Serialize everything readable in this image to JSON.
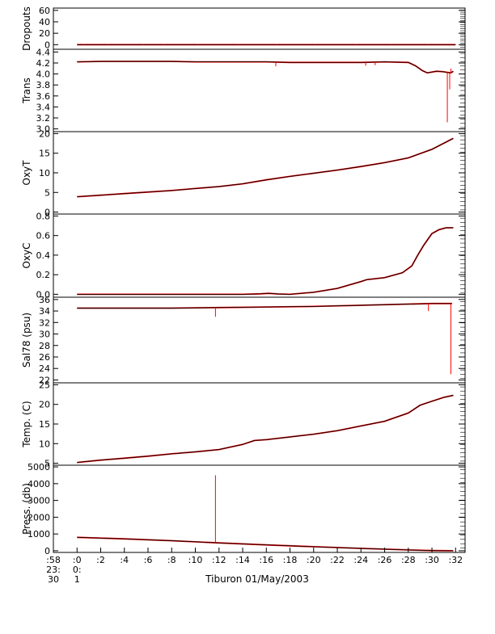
{
  "figure": {
    "caption": "Tiburon 01/May/2003",
    "x_ticks": [
      ":58",
      ":0",
      ":2",
      ":4",
      ":6",
      ":8",
      ":10",
      ":12",
      ":14",
      ":16",
      ":18",
      ":20",
      ":22",
      ":24",
      ":26",
      ":28",
      ":30",
      ":32"
    ],
    "x_sub1": [
      "23:",
      "0:"
    ],
    "x_sub2": [
      "30",
      "1"
    ]
  },
  "colors": {
    "trace": "#000000",
    "overlay": "#ff0000",
    "axis": "#000000"
  },
  "chart_data": [
    {
      "type": "line",
      "ylabel": "Dropouts",
      "ylim": [
        -8,
        64
      ],
      "yticks": [
        0,
        20,
        40,
        60
      ],
      "ytick_labels": [
        "0",
        "20",
        "40",
        "60"
      ],
      "x": [
        0,
        32
      ],
      "series": [
        {
          "values": [
            0,
            0
          ]
        }
      ],
      "spikes": [
        [
          0.6,
          1
        ],
        [
          2.6,
          1
        ],
        [
          5.6,
          1
        ],
        [
          7.4,
          1
        ],
        [
          10.2,
          1
        ],
        [
          13.6,
          1
        ],
        [
          16.9,
          1
        ],
        [
          20.1,
          1
        ],
        [
          23.6,
          1
        ],
        [
          26.6,
          1
        ],
        [
          29.6,
          1
        ]
      ]
    },
    {
      "type": "line",
      "ylabel": "Trans",
      "ylim": [
        2.95,
        4.45
      ],
      "yticks": [
        3.0,
        3.2,
        3.4,
        3.6,
        3.8,
        4.0,
        4.2,
        4.4
      ],
      "ytick_labels": [
        "3.0",
        "3.2",
        "3.4",
        "3.6",
        "3.8",
        "4.0",
        "4.2",
        "4.4"
      ],
      "x": [
        0,
        2,
        4,
        6,
        8,
        10,
        12,
        14,
        16,
        18,
        20,
        22,
        24,
        26,
        28,
        28.6,
        29.2,
        29.6,
        30.4,
        31.0,
        31.3,
        31.6,
        31.8
      ],
      "series": [
        {
          "values": [
            4.22,
            4.23,
            4.23,
            4.23,
            4.23,
            4.22,
            4.22,
            4.22,
            4.22,
            4.21,
            4.21,
            4.21,
            4.21,
            4.22,
            4.21,
            4.15,
            4.06,
            4.02,
            4.05,
            4.04,
            4.03,
            4.02,
            4.05
          ]
        }
      ],
      "spikes": [
        [
          16.8,
          4.14
        ],
        [
          24.4,
          4.15
        ],
        [
          25.2,
          4.16
        ],
        [
          31.3,
          3.12
        ],
        [
          31.5,
          3.72
        ],
        [
          31.6,
          4.1
        ]
      ]
    },
    {
      "type": "line",
      "ylabel": "OxyT",
      "ylim": [
        -0.5,
        20.5
      ],
      "yticks": [
        0,
        5,
        10,
        15,
        20
      ],
      "ytick_labels": [
        "0",
        "5",
        "10",
        "15",
        "20"
      ],
      "x": [
        0,
        2,
        4,
        6,
        8,
        10,
        12,
        14,
        16,
        18,
        20,
        22,
        24,
        26,
        28,
        30,
        31.8
      ],
      "series": [
        {
          "values": [
            3.9,
            4.3,
            4.7,
            5.1,
            5.5,
            6.0,
            6.5,
            7.2,
            8.2,
            9.1,
            9.9,
            10.7,
            11.6,
            12.6,
            13.8,
            16.0,
            18.8
          ]
        }
      ],
      "spikes": []
    },
    {
      "type": "line",
      "ylabel": "OxyC",
      "ylim": [
        -0.03,
        0.82
      ],
      "yticks": [
        0.0,
        0.2,
        0.4,
        0.6,
        0.8
      ],
      "ytick_labels": [
        "0.0",
        "0.2",
        "0.4",
        "0.6",
        "0.8"
      ],
      "x": [
        0,
        4,
        8,
        12,
        14,
        15.5,
        16.2,
        17,
        18,
        20,
        22,
        24,
        24.5,
        26,
        27.5,
        28.3,
        28.8,
        29.3,
        30,
        30.6,
        31.2,
        31.8
      ],
      "series": [
        {
          "values": [
            0.0,
            0.0,
            0.0,
            0.0,
            0.0,
            0.005,
            0.01,
            0.003,
            0.0,
            0.02,
            0.06,
            0.13,
            0.15,
            0.17,
            0.22,
            0.29,
            0.4,
            0.5,
            0.62,
            0.66,
            0.68,
            0.68
          ]
        }
      ],
      "spikes": []
    },
    {
      "type": "line",
      "ylabel": "Sal78 (psu)",
      "ylim": [
        21.5,
        36.4
      ],
      "yticks": [
        22,
        24,
        26,
        28,
        30,
        32,
        34,
        36
      ],
      "ytick_labels": [
        "22",
        "24",
        "26",
        "28",
        "30",
        "32",
        "34",
        "36"
      ],
      "x": [
        0,
        4,
        8,
        12,
        16,
        20,
        24,
        28,
        30,
        31.5,
        31.7
      ],
      "series": [
        {
          "values": [
            34.5,
            34.5,
            34.5,
            34.6,
            34.7,
            34.8,
            35.0,
            35.2,
            35.3,
            35.3,
            35.3
          ]
        }
      ],
      "spikes": [
        [
          11.7,
          33.0
        ],
        [
          29.7,
          34.0
        ],
        [
          31.6,
          23.0
        ]
      ]
    },
    {
      "type": "line",
      "ylabel": "Temp. (C)",
      "ylim": [
        4.5,
        25.5
      ],
      "yticks": [
        5,
        10,
        15,
        20,
        25
      ],
      "ytick_labels": [
        "5",
        "10",
        "15",
        "20",
        "25"
      ],
      "x": [
        0,
        2,
        4,
        6,
        8,
        10,
        12,
        14,
        15,
        16,
        18,
        20,
        22,
        24,
        26,
        28,
        29,
        30,
        31,
        31.8
      ],
      "series": [
        {
          "values": [
            5.2,
            5.8,
            6.3,
            6.8,
            7.4,
            7.9,
            8.5,
            9.8,
            10.8,
            11.0,
            11.7,
            12.4,
            13.3,
            14.5,
            15.7,
            17.8,
            19.8,
            20.8,
            21.8,
            22.3
          ]
        }
      ],
      "spikes": []
    },
    {
      "type": "line",
      "ylabel": "Press. (db)",
      "ylim": [
        -100,
        5100
      ],
      "yticks": [
        0,
        1000,
        2000,
        3000,
        4000,
        5000
      ],
      "ytick_labels": [
        "0",
        "1000",
        "2000",
        "3000",
        "4000",
        "5000"
      ],
      "x": [
        0,
        4,
        8,
        12,
        16,
        20,
        24,
        28,
        30,
        31.8
      ],
      "series": [
        {
          "values": [
            800,
            710,
            600,
            470,
            350,
            240,
            140,
            50,
            10,
            0
          ]
        }
      ],
      "spikes": [
        [
          11.7,
          4500
        ]
      ]
    }
  ]
}
